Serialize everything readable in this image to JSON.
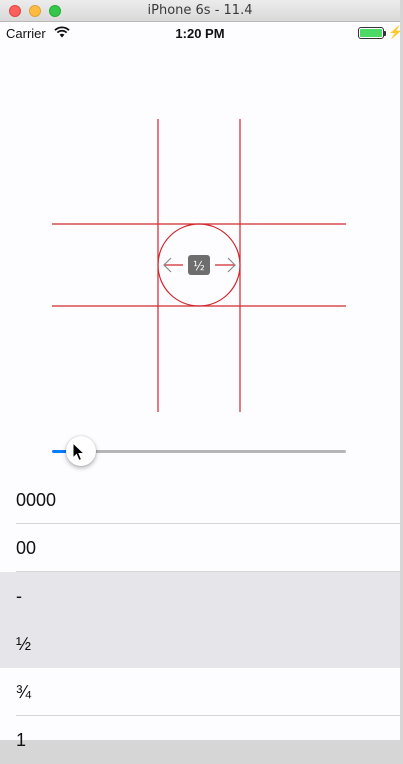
{
  "window": {
    "title": "iPhone 6s - 11.4"
  },
  "status_bar": {
    "carrier": "Carrier",
    "time": "1:20 PM",
    "battery_color": "#4cd964"
  },
  "canvas": {
    "line_color": "#d0282e",
    "center_badge_label": "½",
    "badge_color": "#6e6e6e",
    "left_arrow_icon": "arrow-left-icon",
    "right_arrow_icon": "arrow-right-icon"
  },
  "slider": {
    "value": 0.1,
    "min_track_color": "#0a7aff",
    "max_track_color": "#b6b6b6"
  },
  "list": {
    "items": [
      {
        "label": "0000",
        "selected": false
      },
      {
        "label": "00",
        "selected": false
      },
      {
        "label": "-",
        "selected": true
      },
      {
        "label": "½",
        "selected": true
      },
      {
        "label": "¾",
        "selected": false
      },
      {
        "label": "1",
        "selected": false
      }
    ]
  }
}
